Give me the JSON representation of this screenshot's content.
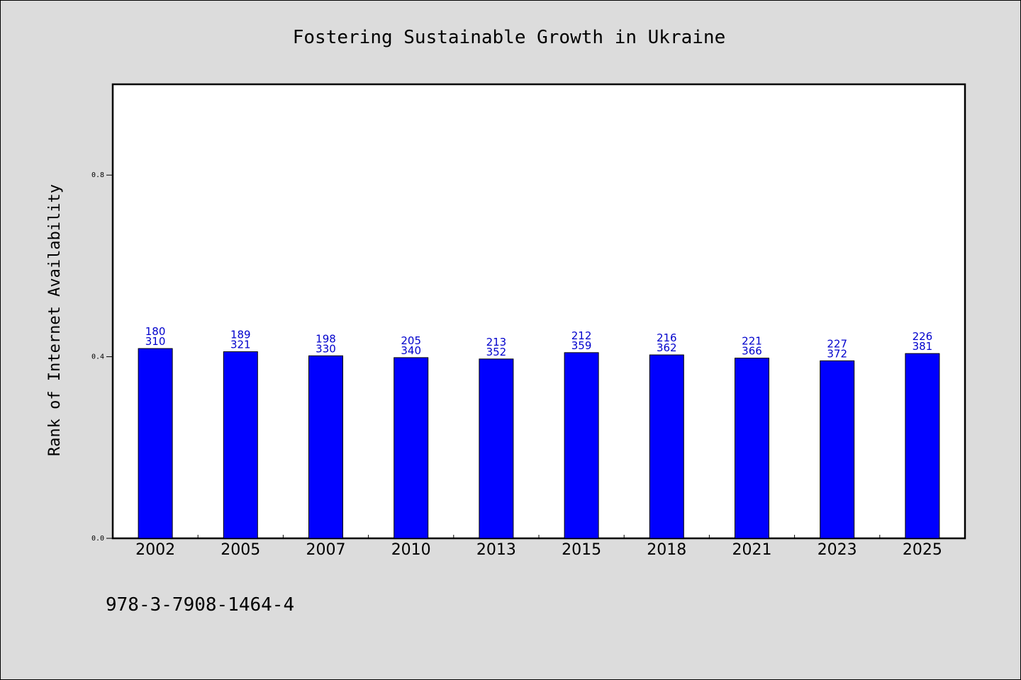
{
  "colors": {
    "background": "#dcdcdc",
    "plot_background": "#ffffff",
    "bar": "#0000ff",
    "label": "#0000cc"
  },
  "chart_data": {
    "type": "bar",
    "title": "Fostering Sustainable Growth in Ukraine",
    "ylabel": "Rank of Internet Availability",
    "xlabel": "",
    "ylim": [
      0,
      1.0
    ],
    "yticks": [
      0.0,
      0.4,
      0.8
    ],
    "ytick_labels": [
      "0.0",
      "0.4",
      "0.8"
    ],
    "categories": [
      "2002",
      "2005",
      "2007",
      "2010",
      "2013",
      "2015",
      "2018",
      "2021",
      "2023",
      "2025"
    ],
    "values": [
      0.418,
      0.411,
      0.402,
      0.398,
      0.395,
      0.409,
      0.404,
      0.397,
      0.391,
      0.407
    ],
    "labels_top": [
      "180",
      "189",
      "198",
      "205",
      "213",
      "212",
      "216",
      "221",
      "227",
      "226"
    ],
    "labels_bottom": [
      "310",
      "321",
      "330",
      "340",
      "352",
      "359",
      "362",
      "366",
      "372",
      "381"
    ],
    "grid": false,
    "legend": "none"
  },
  "footer": {
    "isbn": "978-3-7908-1464-4"
  }
}
